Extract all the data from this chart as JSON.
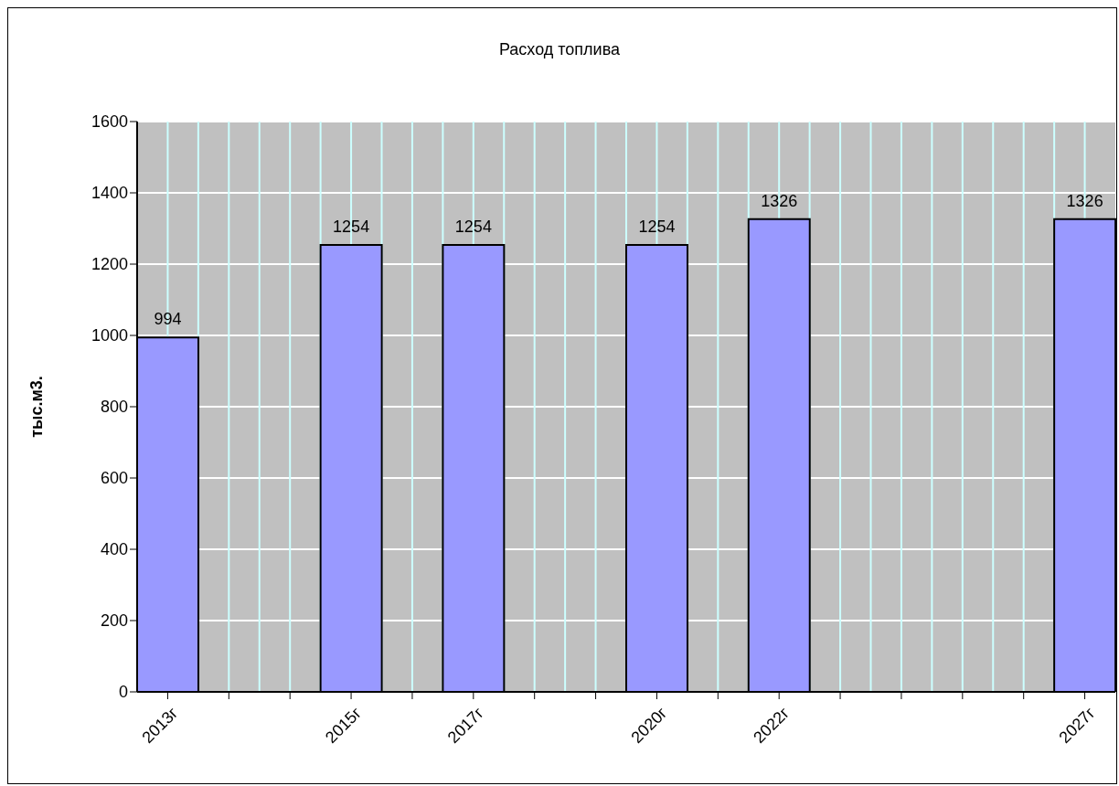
{
  "chart_data": {
    "type": "bar",
    "title": "Расход топлива",
    "ylabel": "тыс.м3.",
    "categories": [
      "2013г",
      null,
      null,
      "2015г",
      null,
      "2017г",
      null,
      null,
      "2020г",
      null,
      "2022г",
      null,
      null,
      null,
      null,
      "2027г"
    ],
    "values": [
      994,
      null,
      null,
      1254,
      null,
      1254,
      null,
      null,
      1254,
      null,
      1326,
      null,
      null,
      null,
      null,
      1326
    ],
    "color": "#9999ff",
    "ylim": [
      0,
      1600
    ],
    "yticks": [
      0,
      200,
      400,
      600,
      800,
      1000,
      1200,
      1400,
      1600
    ],
    "grid": true,
    "data_labels": true
  }
}
